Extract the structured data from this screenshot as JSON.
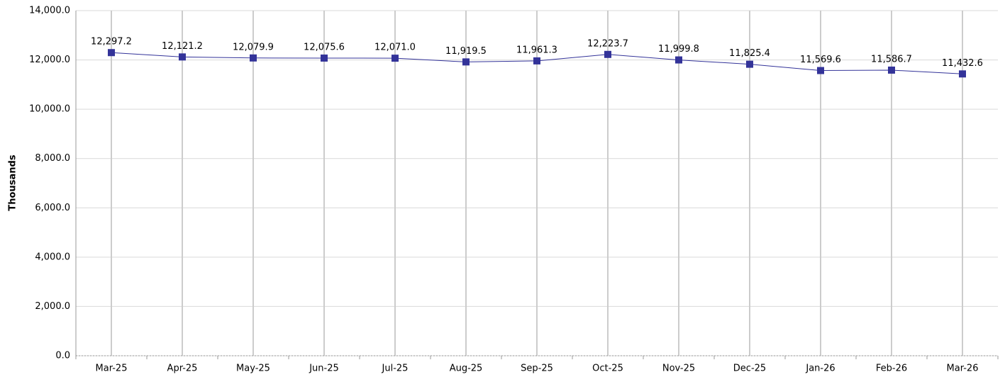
{
  "chart_data": {
    "type": "line",
    "y_label": "Thousands",
    "categories": [
      "Mar-25",
      "Apr-25",
      "May-25",
      "Jun-25",
      "Jul-25",
      "Aug-25",
      "Sep-25",
      "Oct-25",
      "Nov-25",
      "Dec-25",
      "Jan-26",
      "Feb-26",
      "Mar-26"
    ],
    "series": [
      {
        "color": "#333399",
        "values": [
          12297.2,
          12121.2,
          12079.9,
          12075.6,
          12071.0,
          11919.5,
          11961.3,
          12223.7,
          11999.8,
          11825.4,
          11569.6,
          11586.7,
          11432.6
        ],
        "value_labels": [
          "12,297.2",
          "12,121.2",
          "12,079.9",
          "12,075.6",
          "12,071.0",
          "11,919.5",
          "11,961.3",
          "12,223.7",
          "11,999.8",
          "11,825.4",
          "11,569.6",
          "11,586.7",
          "11,432.6"
        ]
      }
    ],
    "ylim": [
      0,
      14000
    ],
    "yticks": [
      {
        "value": 0,
        "label": "0.0"
      },
      {
        "value": 2000,
        "label": "2,000.0"
      },
      {
        "value": 4000,
        "label": "4,000.0"
      },
      {
        "value": 6000,
        "label": "6,000.0"
      },
      {
        "value": 8000,
        "label": "8,000.0"
      },
      {
        "value": 10000,
        "label": "10,000.0"
      },
      {
        "value": 12000,
        "label": "12,000.0"
      },
      {
        "value": 14000,
        "label": "14,000.0"
      }
    ],
    "grid": true
  }
}
